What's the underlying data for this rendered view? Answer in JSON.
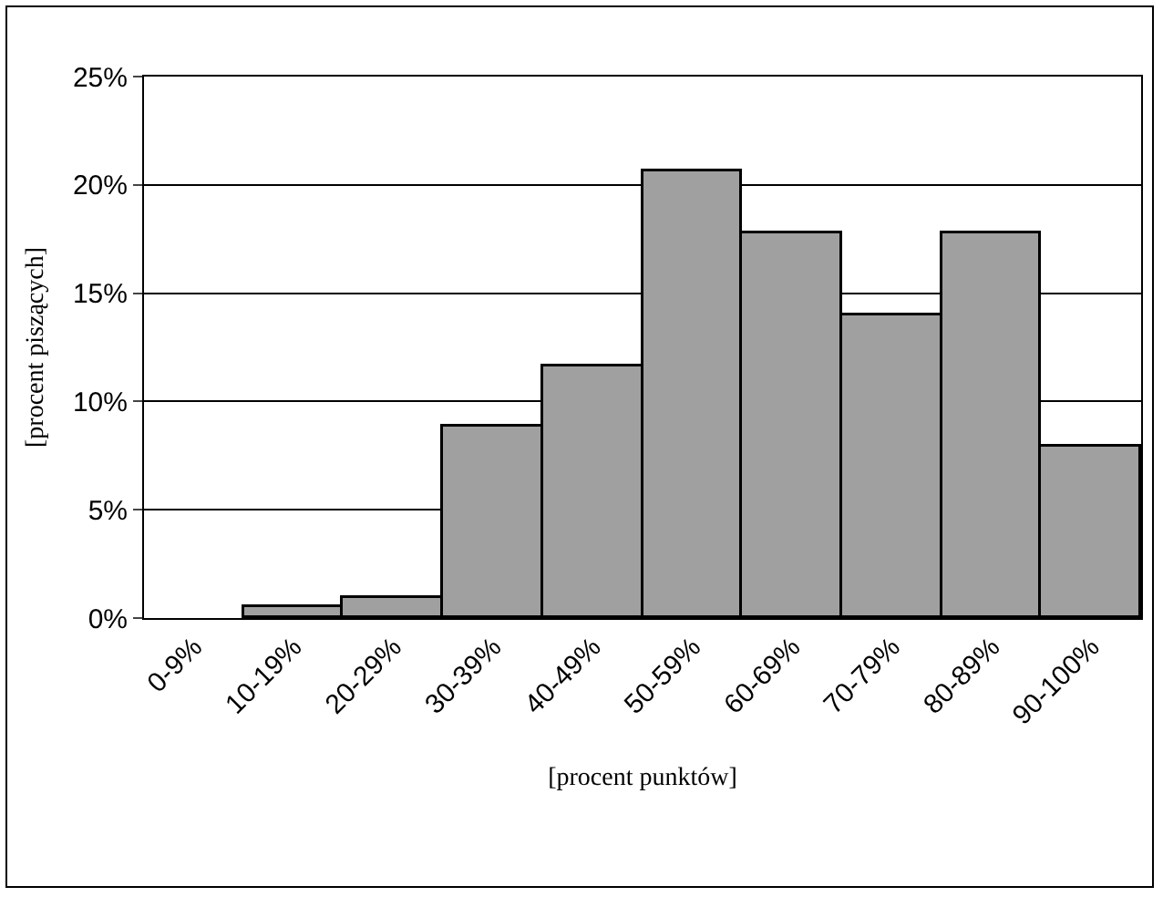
{
  "chart_data": {
    "type": "bar",
    "xlabel": "[procent punktów]",
    "ylabel": "[procent piszących]",
    "categories": [
      "0-9%",
      "10-19%",
      "20-29%",
      "30-39%",
      "40-49%",
      "50-59%",
      "60-69%",
      "70-79%",
      "80-89%",
      "90-100%"
    ],
    "values": [
      0,
      0.5,
      0.9,
      8.8,
      11.6,
      20.6,
      17.8,
      14.0,
      17.8,
      7.9
    ],
    "color": "#a0a0a0",
    "ylim": [
      0,
      25
    ],
    "yticks": [
      {
        "value": 0,
        "label": "0%"
      },
      {
        "value": 5,
        "label": "5%"
      },
      {
        "value": 10,
        "label": "10%"
      },
      {
        "value": 15,
        "label": "15%"
      },
      {
        "value": 20,
        "label": "20%"
      },
      {
        "value": 25,
        "label": "25%"
      }
    ],
    "grid": "y",
    "legend": false
  }
}
